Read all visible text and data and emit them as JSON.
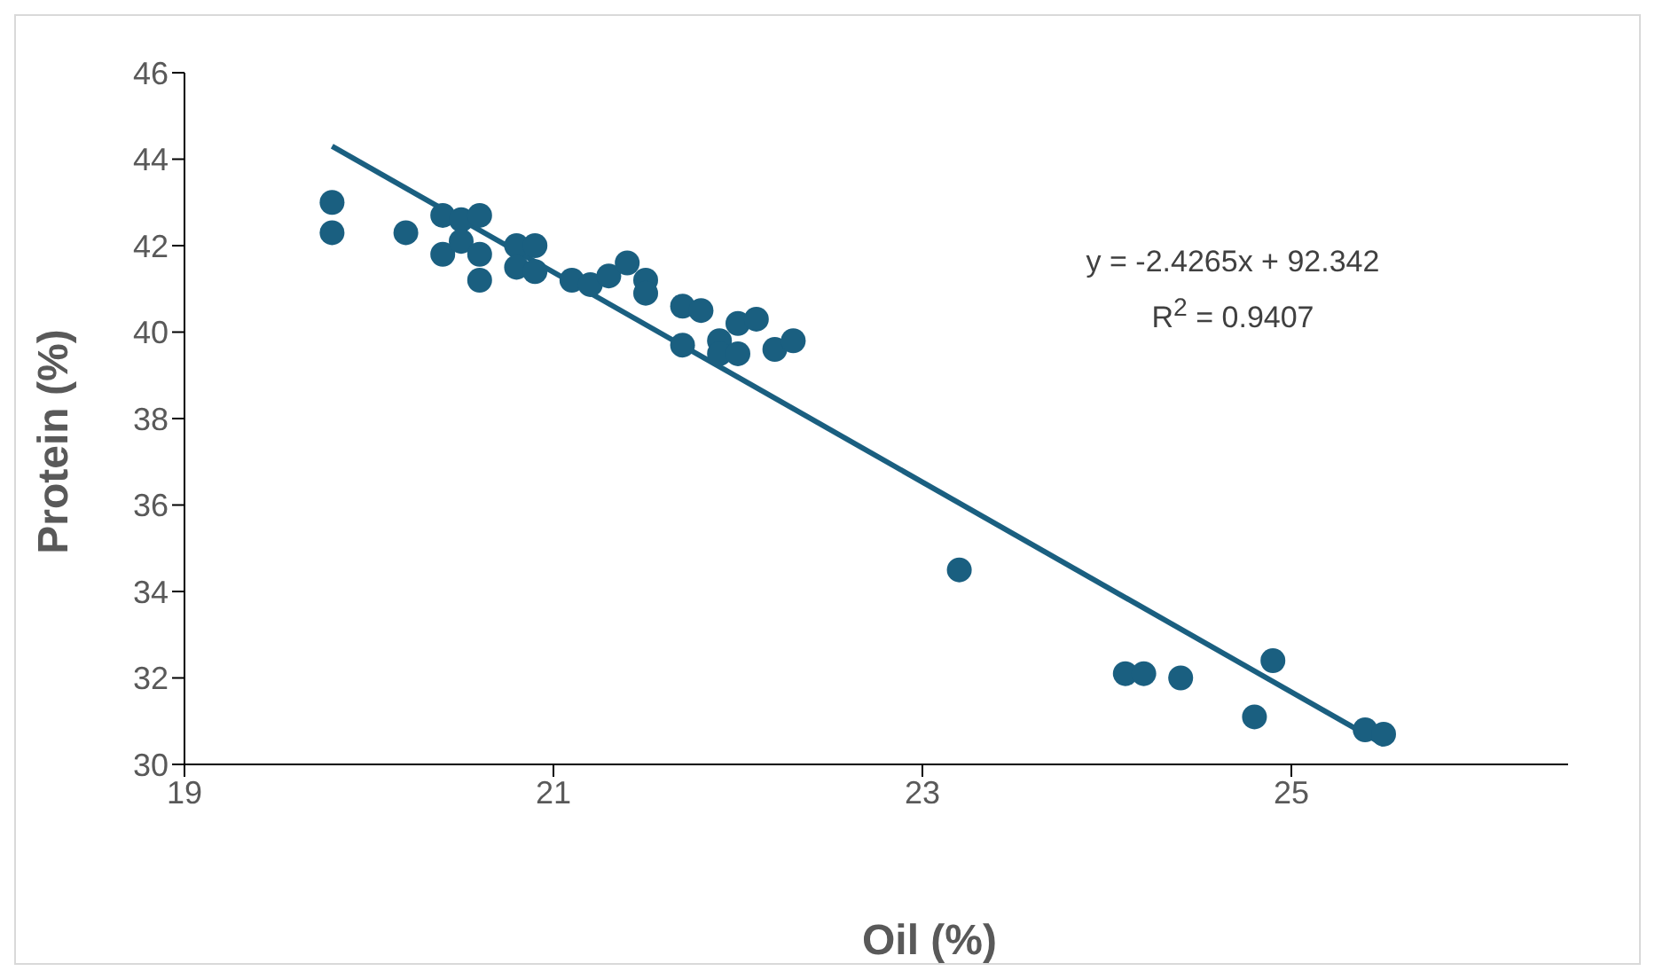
{
  "chart_data": {
    "type": "scatter",
    "xlabel": "Oil (%)",
    "ylabel": "Protein (%)",
    "x": [
      19.8,
      19.8,
      20.2,
      20.4,
      20.5,
      20.6,
      20.4,
      20.5,
      20.6,
      20.6,
      20.8,
      20.9,
      20.8,
      20.9,
      21.1,
      21.2,
      21.3,
      21.4,
      21.5,
      21.5,
      21.7,
      21.8,
      21.7,
      21.9,
      22.0,
      22.1,
      21.9,
      22.0,
      22.2,
      22.3,
      23.2,
      24.1,
      24.2,
      24.4,
      24.8,
      24.9,
      25.4,
      25.5
    ],
    "series": [
      {
        "color": "#1a5f80",
        "marker": "circle",
        "values": [
          43.0,
          42.3,
          42.3,
          42.7,
          42.6,
          42.7,
          41.8,
          42.1,
          41.8,
          41.2,
          42.0,
          42.0,
          41.5,
          41.4,
          41.2,
          41.1,
          41.3,
          41.6,
          41.2,
          40.9,
          40.6,
          40.5,
          39.7,
          39.8,
          40.2,
          40.3,
          39.5,
          39.5,
          39.6,
          39.8,
          34.5,
          32.1,
          32.1,
          32.0,
          31.1,
          32.4,
          30.8,
          30.7
        ]
      },
      {
        "type": "line",
        "color": "#1a5f80",
        "marker": "none",
        "x": [
          19.8,
          25.5
        ],
        "values": [
          44.3,
          30.46
        ]
      }
    ],
    "annotations": [
      "y = -2.4265x + 92.342",
      "R$^{2}$ = 0.9407"
    ],
    "xlim": [
      19,
      26.5
    ],
    "xticks": [
      19,
      21,
      23,
      25
    ],
    "ylim": [
      30,
      46
    ],
    "yticks": [
      30,
      32,
      34,
      36,
      38,
      40,
      42,
      44,
      46
    ],
    "grid": false
  }
}
